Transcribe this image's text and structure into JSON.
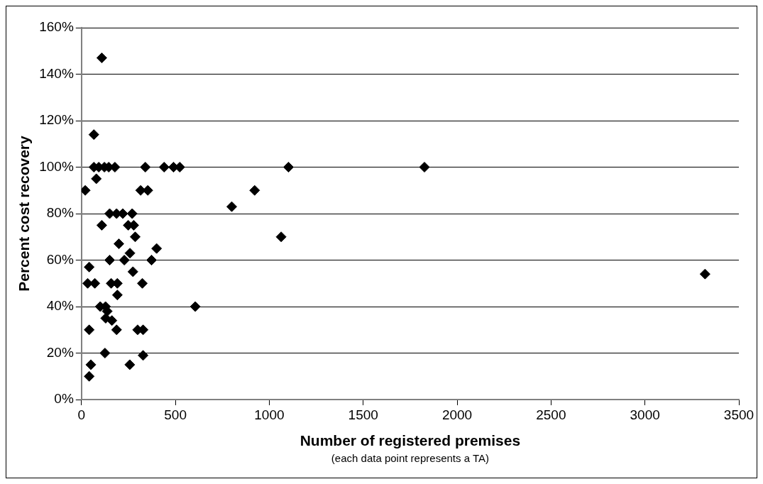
{
  "chart_data": {
    "type": "scatter",
    "xlabel": "Number of registered premises",
    "ylabel": "Percent cost recovery",
    "annotations": [
      "(each data point represents a TA)"
    ],
    "series": [
      {
        "color": "#000000",
        "x": [
          108,
          66,
          66,
          92,
          122,
          145,
          178,
          340,
          440,
          490,
          523,
          1102,
          1826,
          20,
          79,
          315,
          353,
          922,
          800,
          1063,
          150,
          187,
          220,
          270,
          108,
          249,
          278,
          286,
          199,
          400,
          150,
          228,
          258,
          373,
          41,
          274,
          33,
          71,
          158,
          191,
          324,
          191,
          100,
          128,
          137,
          129,
          162,
          606,
          3320,
          41,
          187,
          299,
          328,
          125,
          328,
          50,
          257,
          41
        ],
        "values": [
          147,
          114,
          100,
          100,
          100,
          100,
          100,
          100,
          100,
          100,
          100,
          100,
          100,
          90,
          95,
          90,
          90,
          90,
          83,
          70,
          80,
          80,
          80,
          80,
          75,
          75,
          75,
          70,
          67,
          65,
          60,
          60,
          63,
          60,
          57,
          55,
          50,
          50,
          50,
          50,
          50,
          45,
          40,
          40,
          38,
          35,
          34,
          40,
          54,
          30,
          30,
          30,
          30,
          20,
          19,
          15,
          15,
          10
        ]
      }
    ],
    "xlim": [
      0,
      3500
    ],
    "xticks": [
      0,
      500,
      1000,
      1500,
      2000,
      2500,
      3000,
      3500
    ],
    "ylim": [
      0,
      160
    ],
    "yticks": [
      {
        "value": 0,
        "label": "0%"
      },
      {
        "value": 20,
        "label": "20%"
      },
      {
        "value": 40,
        "label": "40%"
      },
      {
        "value": 60,
        "label": "60%"
      },
      {
        "value": 80,
        "label": "80%"
      },
      {
        "value": 100,
        "label": "100%"
      },
      {
        "value": 120,
        "label": "120%"
      },
      {
        "value": 140,
        "label": "140%"
      },
      {
        "value": 160,
        "label": "160%"
      }
    ],
    "grid": "y",
    "legend": false,
    "marker": "diamond"
  }
}
